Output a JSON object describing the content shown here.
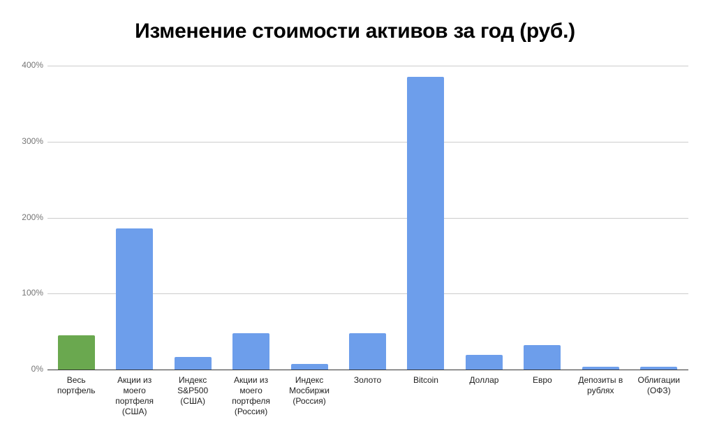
{
  "chart_data": {
    "type": "bar",
    "title": "Изменение стоимости активов за год (руб.)",
    "xlabel": "",
    "ylabel": "",
    "ylim": [
      0,
      400
    ],
    "yticks": [
      "0%",
      "100%",
      "200%",
      "300%",
      "400%"
    ],
    "grid": true,
    "legend": "none",
    "categories": [
      "Весь портфель",
      "Акции из моего портфеля (США)",
      "Индекс S&P500 (США)",
      "Акции из моего портфеля (Россия)",
      "Индекс Мосбиржи (Россия)",
      "Золото",
      "Bitcoin",
      "Доллар",
      "Евро",
      "Депозиты в рублях",
      "Облигации (ОФЗ)"
    ],
    "category_lines": [
      [
        "Весь",
        "портфель"
      ],
      [
        "Акции из",
        "моего",
        "портфеля",
        "(США)"
      ],
      [
        "Индекс",
        "S&P500",
        "(США)"
      ],
      [
        "Акции из",
        "моего",
        "портфеля",
        "(Россия)"
      ],
      [
        "Индекс",
        "Мосбиржи",
        "(Россия)"
      ],
      [
        "Золото"
      ],
      [
        "Bitcoin"
      ],
      [
        "Доллар"
      ],
      [
        "Евро"
      ],
      [
        "Депозиты в",
        "рублях"
      ],
      [
        "Облигации",
        "(ОФЗ)"
      ]
    ],
    "values": [
      45,
      186,
      17,
      48,
      7,
      48,
      385,
      19,
      32,
      4,
      4
    ],
    "unit": "%",
    "colors": [
      "#6aa84f",
      "#6d9eeb",
      "#6d9eeb",
      "#6d9eeb",
      "#6d9eeb",
      "#6d9eeb",
      "#6d9eeb",
      "#6d9eeb",
      "#6d9eeb",
      "#6d9eeb",
      "#6d9eeb"
    ]
  },
  "colors": {
    "highlight_bar": "#6aa84f",
    "bar": "#6d9eeb",
    "gridline": "#cccccc",
    "axis": "#333333",
    "tick_label": "#757575"
  }
}
